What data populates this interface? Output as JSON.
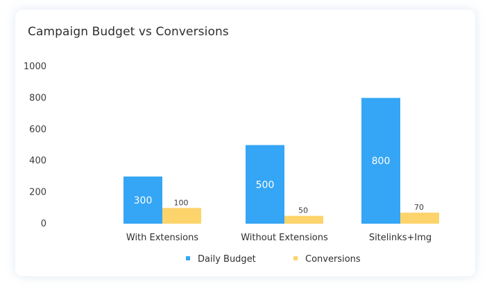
{
  "card": {
    "title": "Campaign Budget vs Conversions"
  },
  "chart_data": {
    "type": "bar",
    "categories": [
      "With Extensions",
      "Without Extensions",
      "Sitelinks+Img"
    ],
    "series": [
      {
        "name": "Daily Budget",
        "values": [
          300,
          500,
          800
        ],
        "color": "#35a5f5"
      },
      {
        "name": "Conversions",
        "values": [
          100,
          50,
          70
        ],
        "color": "#fdd46b"
      }
    ],
    "y_ticks": [
      "1000",
      "800",
      "600",
      "400",
      "200",
      "0"
    ],
    "ylim": [
      0,
      1000
    ],
    "grid": false,
    "legend_position": "bottom",
    "title": "Campaign Budget vs Conversions"
  }
}
